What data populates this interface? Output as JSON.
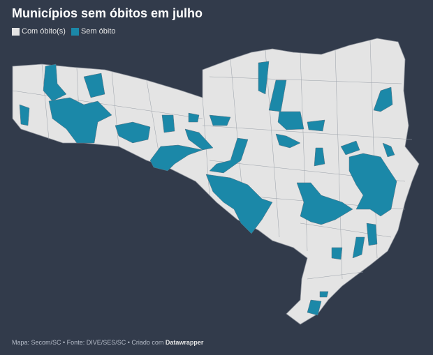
{
  "title": "Municípios sem óbitos em julho",
  "legend": [
    {
      "label": "Com óbito(s)",
      "color": "#e4e4e4"
    },
    {
      "label": "Sem óbito",
      "color": "#1b88a8"
    }
  ],
  "colors": {
    "background": "#323b4b",
    "border": "#8a8f98"
  },
  "footer": {
    "source": "Mapa: Secom/SC • Fonte: DIVE/SES/SC • Criado com ",
    "brand": "Datawrapper"
  }
}
